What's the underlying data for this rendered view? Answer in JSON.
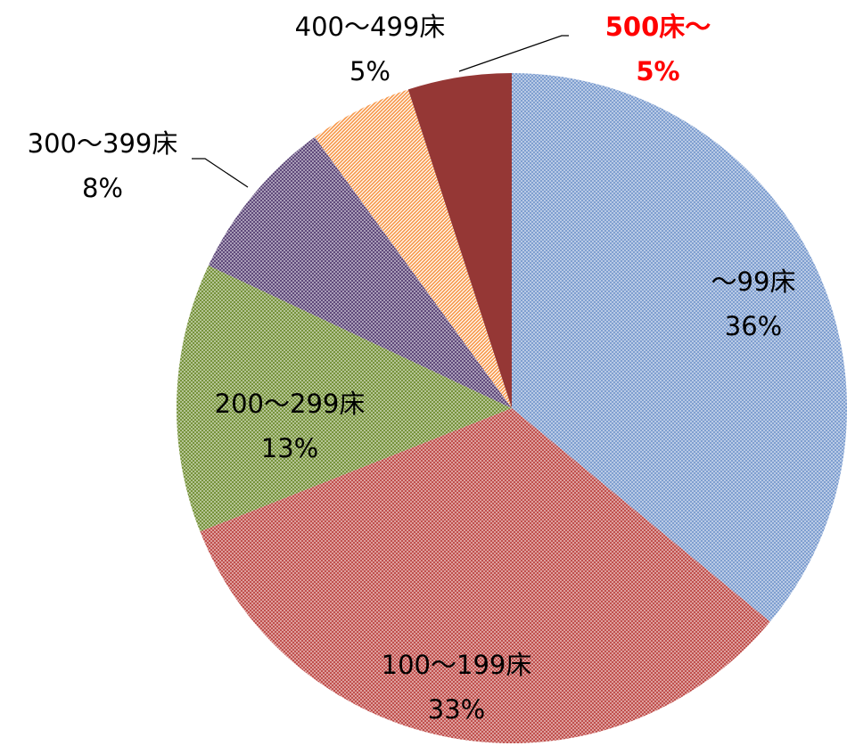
{
  "chart_data": {
    "type": "pie",
    "categories": [
      "～99床",
      "100～199床",
      "200～299床",
      "300～399床",
      "400～499床",
      "500床～"
    ],
    "values": [
      36,
      33,
      13,
      8,
      5,
      5
    ],
    "value_labels": [
      "36%",
      "33%",
      "13%",
      "8%",
      "5%",
      "5%"
    ],
    "colors": [
      "#7f9fd0",
      "#c0504d",
      "#77933c",
      "#604a7b",
      "#f79646",
      "#953735"
    ]
  }
}
